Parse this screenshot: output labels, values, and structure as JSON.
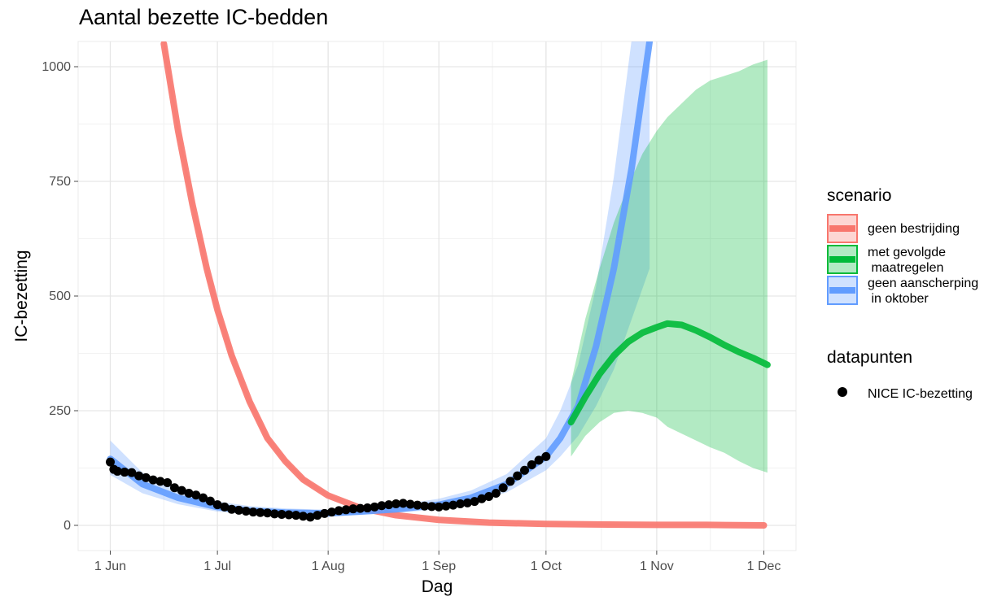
{
  "chart_data": {
    "type": "line",
    "title": "Aantal bezette IC-bedden",
    "xlabel": "Dag",
    "ylabel": "IC-bezetting",
    "ylim": [
      -55,
      1055
    ],
    "yticks": [
      0,
      250,
      500,
      750,
      1000
    ],
    "xlim": [
      "2020-05-23",
      "2020-12-10"
    ],
    "xticks": [
      {
        "date": "2020-06-01",
        "label": "1 Jun"
      },
      {
        "date": "2020-07-01",
        "label": "1 Jul"
      },
      {
        "date": "2020-08-01",
        "label": "1 Aug"
      },
      {
        "date": "2020-09-01",
        "label": "1 Sep"
      },
      {
        "date": "2020-10-01",
        "label": "1 Oct"
      },
      {
        "date": "2020-11-01",
        "label": "1 Nov"
      },
      {
        "date": "2020-12-01",
        "label": "1 Dec"
      }
    ],
    "grid": true,
    "legend_position": "right",
    "series": [
      {
        "name": "geen bestrijding",
        "color": "#F8766D",
        "x": [
          "2020-06-16",
          "2020-06-20",
          "2020-06-24",
          "2020-06-28",
          "2020-07-01",
          "2020-07-05",
          "2020-07-10",
          "2020-07-15",
          "2020-07-20",
          "2020-07-25",
          "2020-08-01",
          "2020-08-10",
          "2020-08-20",
          "2020-09-01",
          "2020-09-15",
          "2020-10-01",
          "2020-10-15",
          "2020-11-01",
          "2020-11-15",
          "2020-12-01"
        ],
        "y": [
          1050,
          860,
          700,
          560,
          470,
          370,
          270,
          190,
          140,
          100,
          65,
          38,
          22,
          12,
          6,
          3,
          2,
          1,
          1,
          0
        ],
        "lower": [
          1030,
          845,
          685,
          545,
          455,
          358,
          260,
          182,
          134,
          95,
          61,
          35,
          20,
          11,
          5,
          2,
          1,
          0,
          0,
          0
        ],
        "upper": [
          1070,
          875,
          715,
          575,
          485,
          382,
          280,
          198,
          146,
          105,
          69,
          41,
          24,
          13,
          7,
          4,
          3,
          2,
          2,
          1
        ]
      },
      {
        "name": "met gevolgde\n maatregelen",
        "color": "#00BA38",
        "x": [
          "2020-10-08",
          "2020-10-12",
          "2020-10-16",
          "2020-10-20",
          "2020-10-24",
          "2020-10-28",
          "2020-11-01",
          "2020-11-04",
          "2020-11-08",
          "2020-11-12",
          "2020-11-16",
          "2020-11-20",
          "2020-11-24",
          "2020-11-28",
          "2020-12-02"
        ],
        "y": [
          225,
          280,
          330,
          370,
          400,
          420,
          432,
          440,
          437,
          425,
          410,
          393,
          378,
          365,
          350
        ],
        "lower": [
          150,
          195,
          225,
          245,
          250,
          245,
          235,
          215,
          200,
          185,
          170,
          158,
          140,
          125,
          115
        ],
        "upper": [
          310,
          450,
          560,
          660,
          740,
          810,
          860,
          890,
          920,
          950,
          970,
          980,
          990,
          1005,
          1015
        ]
      },
      {
        "name": "geen aanscherping\n in oktober",
        "color": "#619CFF",
        "x": [
          "2020-06-01",
          "2020-06-10",
          "2020-06-20",
          "2020-07-01",
          "2020-07-10",
          "2020-07-20",
          "2020-08-01",
          "2020-08-10",
          "2020-08-20",
          "2020-09-01",
          "2020-09-10",
          "2020-09-20",
          "2020-10-01",
          "2020-10-05",
          "2020-10-10",
          "2020-10-15",
          "2020-10-20",
          "2020-10-25",
          "2020-10-30"
        ],
        "y": [
          145,
          90,
          60,
          40,
          32,
          28,
          26,
          30,
          35,
          45,
          60,
          90,
          150,
          190,
          260,
          390,
          560,
          780,
          1055
        ],
        "lower": [
          110,
          70,
          46,
          30,
          24,
          21,
          20,
          23,
          27,
          35,
          48,
          72,
          120,
          150,
          195,
          260,
          340,
          450,
          560
        ],
        "upper": [
          185,
          115,
          77,
          52,
          42,
          37,
          34,
          38,
          44,
          58,
          76,
          112,
          190,
          250,
          350,
          520,
          760,
          1060,
          1060
        ]
      }
    ],
    "points": {
      "name": "NICE IC-bezetting",
      "color": "#000000",
      "x": [
        "2020-06-01",
        "2020-06-02",
        "2020-06-03",
        "2020-06-05",
        "2020-06-07",
        "2020-06-09",
        "2020-06-11",
        "2020-06-13",
        "2020-06-15",
        "2020-06-17",
        "2020-06-19",
        "2020-06-21",
        "2020-06-23",
        "2020-06-25",
        "2020-06-27",
        "2020-06-29",
        "2020-07-01",
        "2020-07-03",
        "2020-07-05",
        "2020-07-07",
        "2020-07-09",
        "2020-07-11",
        "2020-07-13",
        "2020-07-15",
        "2020-07-17",
        "2020-07-19",
        "2020-07-21",
        "2020-07-23",
        "2020-07-25",
        "2020-07-27",
        "2020-07-29",
        "2020-07-31",
        "2020-08-02",
        "2020-08-04",
        "2020-08-06",
        "2020-08-08",
        "2020-08-10",
        "2020-08-12",
        "2020-08-14",
        "2020-08-16",
        "2020-08-18",
        "2020-08-20",
        "2020-08-22",
        "2020-08-24",
        "2020-08-26",
        "2020-08-28",
        "2020-08-30",
        "2020-09-01",
        "2020-09-03",
        "2020-09-05",
        "2020-09-07",
        "2020-09-09",
        "2020-09-11",
        "2020-09-13",
        "2020-09-15",
        "2020-09-17",
        "2020-09-19",
        "2020-09-21",
        "2020-09-23",
        "2020-09-25",
        "2020-09-27",
        "2020-09-29",
        "2020-10-01"
      ],
      "y": [
        138,
        122,
        118,
        116,
        115,
        108,
        104,
        99,
        96,
        93,
        82,
        76,
        70,
        66,
        60,
        53,
        45,
        40,
        35,
        33,
        31,
        29,
        28,
        27,
        25,
        24,
        23,
        22,
        20,
        18,
        22,
        26,
        29,
        32,
        34,
        36,
        37,
        38,
        40,
        43,
        45,
        47,
        48,
        46,
        44,
        42,
        41,
        40,
        42,
        44,
        47,
        49,
        52,
        58,
        63,
        70,
        82,
        96,
        108,
        120,
        132,
        142,
        150
      ]
    }
  },
  "legend": {
    "scenario_title": "scenario",
    "datapunten_title": "datapunten"
  }
}
